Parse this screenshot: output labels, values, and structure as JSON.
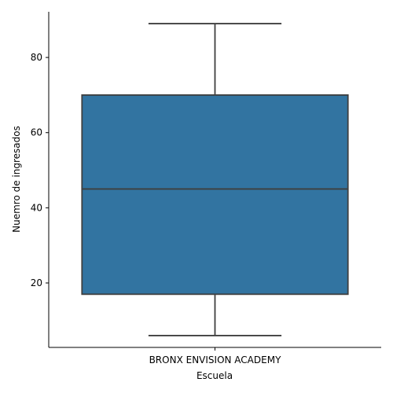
{
  "chart_data": {
    "type": "box",
    "title": "",
    "xlabel": "Escuela",
    "ylabel": "Nuemro de ingresados",
    "categories": [
      "BRONX ENVISION ACADEMY"
    ],
    "boxes": [
      {
        "category": "BRONX ENVISION ACADEMY",
        "whisker_low": 6,
        "q1": 17,
        "median": 45,
        "q3": 70,
        "whisker_high": 89
      }
    ],
    "yticks": [
      20,
      40,
      60,
      80
    ],
    "ylim": [
      2.85,
      92.15
    ],
    "grid": false,
    "legend": "none",
    "colors": {
      "box_fill": "#3274a1",
      "line": "#3f3f3f",
      "axis": "#000000"
    }
  }
}
